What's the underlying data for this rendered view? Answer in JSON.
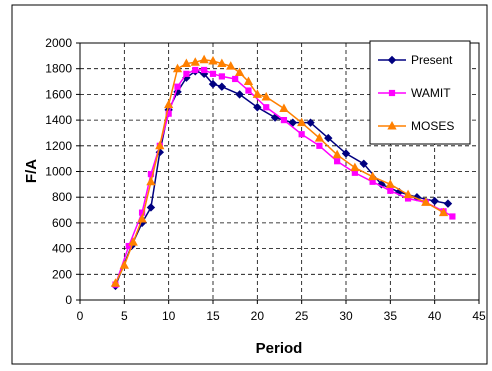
{
  "chart_data": {
    "type": "line",
    "title": "",
    "xlabel": "Period",
    "ylabel": "F/A",
    "xlim": [
      0,
      45
    ],
    "ylim": [
      0,
      2000
    ],
    "xticks": [
      0,
      5,
      10,
      15,
      20,
      25,
      30,
      35,
      40,
      45
    ],
    "yticks": [
      0,
      200,
      400,
      600,
      800,
      1000,
      1200,
      1400,
      1600,
      1800,
      2000
    ],
    "grid": "dashed",
    "legend_position": "top-right",
    "series": [
      {
        "name": "Present",
        "color": "#000080",
        "marker": "diamond",
        "x": [
          4.0,
          5.8,
          7.0,
          8.0,
          9.0,
          10.0,
          11.0,
          12.0,
          13.0,
          14.0,
          15.0,
          16.0,
          18.0,
          20.0,
          22.0,
          24.0,
          26.0,
          28.0,
          30.0,
          32.0,
          34.0,
          36.0,
          38.0,
          40.0,
          41.5
        ],
        "y": [
          110,
          420,
          600,
          720,
          1150,
          1480,
          1620,
          1730,
          1780,
          1760,
          1680,
          1660,
          1600,
          1500,
          1420,
          1380,
          1380,
          1260,
          1140,
          1060,
          900,
          840,
          800,
          770,
          750
        ]
      },
      {
        "name": "WAMIT",
        "color": "#ff00ff",
        "marker": "square",
        "x": [
          4.0,
          5.5,
          7.0,
          8.0,
          9.0,
          10.0,
          11.0,
          12.0,
          13.0,
          14.0,
          15.0,
          16.0,
          17.5,
          19.0,
          21.0,
          23.0,
          25.0,
          27.0,
          29.0,
          31.0,
          33.0,
          35.0,
          37.0,
          39.0,
          41.0,
          42.0
        ],
        "y": [
          120,
          420,
          680,
          980,
          1200,
          1450,
          1660,
          1760,
          1790,
          1790,
          1760,
          1740,
          1720,
          1630,
          1500,
          1400,
          1290,
          1200,
          1080,
          990,
          920,
          850,
          790,
          760,
          690,
          650
        ]
      },
      {
        "name": "MOSES",
        "color": "#ff8000",
        "marker": "triangle",
        "x": [
          4.0,
          5.0,
          6.0,
          7.0,
          8.0,
          9.0,
          10.0,
          11.0,
          12.0,
          13.0,
          14.0,
          15.0,
          16.0,
          17.0,
          18.0,
          19.0,
          20.0,
          21.0,
          23.0,
          25.0,
          27.0,
          29.0,
          31.0,
          33.0,
          35.0,
          37.0,
          39.0,
          41.0
        ],
        "y": [
          130,
          270,
          450,
          630,
          920,
          1200,
          1520,
          1800,
          1840,
          1850,
          1870,
          1860,
          1840,
          1820,
          1770,
          1700,
          1600,
          1580,
          1490,
          1380,
          1260,
          1130,
          1030,
          960,
          900,
          820,
          760,
          680
        ]
      }
    ]
  }
}
